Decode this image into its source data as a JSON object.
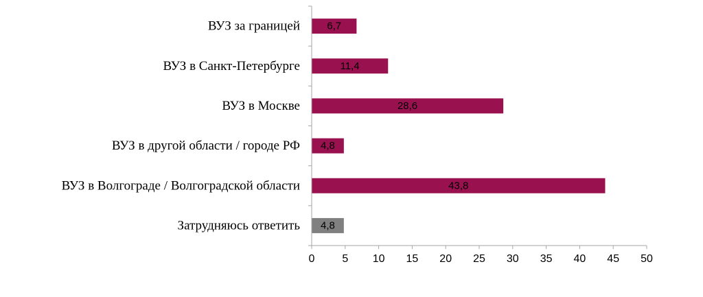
{
  "chart_data": {
    "type": "bar",
    "orientation": "horizontal",
    "title": "",
    "xlabel": "",
    "ylabel": "",
    "xlim": [
      0,
      50
    ],
    "x_ticks": [
      "0",
      "5",
      "10",
      "15",
      "20",
      "25",
      "30",
      "35",
      "40",
      "45",
      "50"
    ],
    "grid": false,
    "legend": "none",
    "categories": [
      "ВУЗ за границей",
      "ВУЗ в Санкт-Петербурге",
      "ВУЗ в Москве",
      "ВУЗ в другой области / городе РФ",
      "ВУЗ в Волгограде / Волгоградской области",
      "Затрудняюсь ответить"
    ],
    "values": [
      6.7,
      11.4,
      28.6,
      4.8,
      43.8,
      4.8
    ],
    "value_labels": [
      "6,7",
      "11,4",
      "28,6",
      "4,8",
      "43,8",
      "4,8"
    ],
    "bar_colors": [
      "#99124f",
      "#99124f",
      "#99124f",
      "#99124f",
      "#99124f",
      "#808080"
    ],
    "axis_color": "#a6a6a6"
  }
}
